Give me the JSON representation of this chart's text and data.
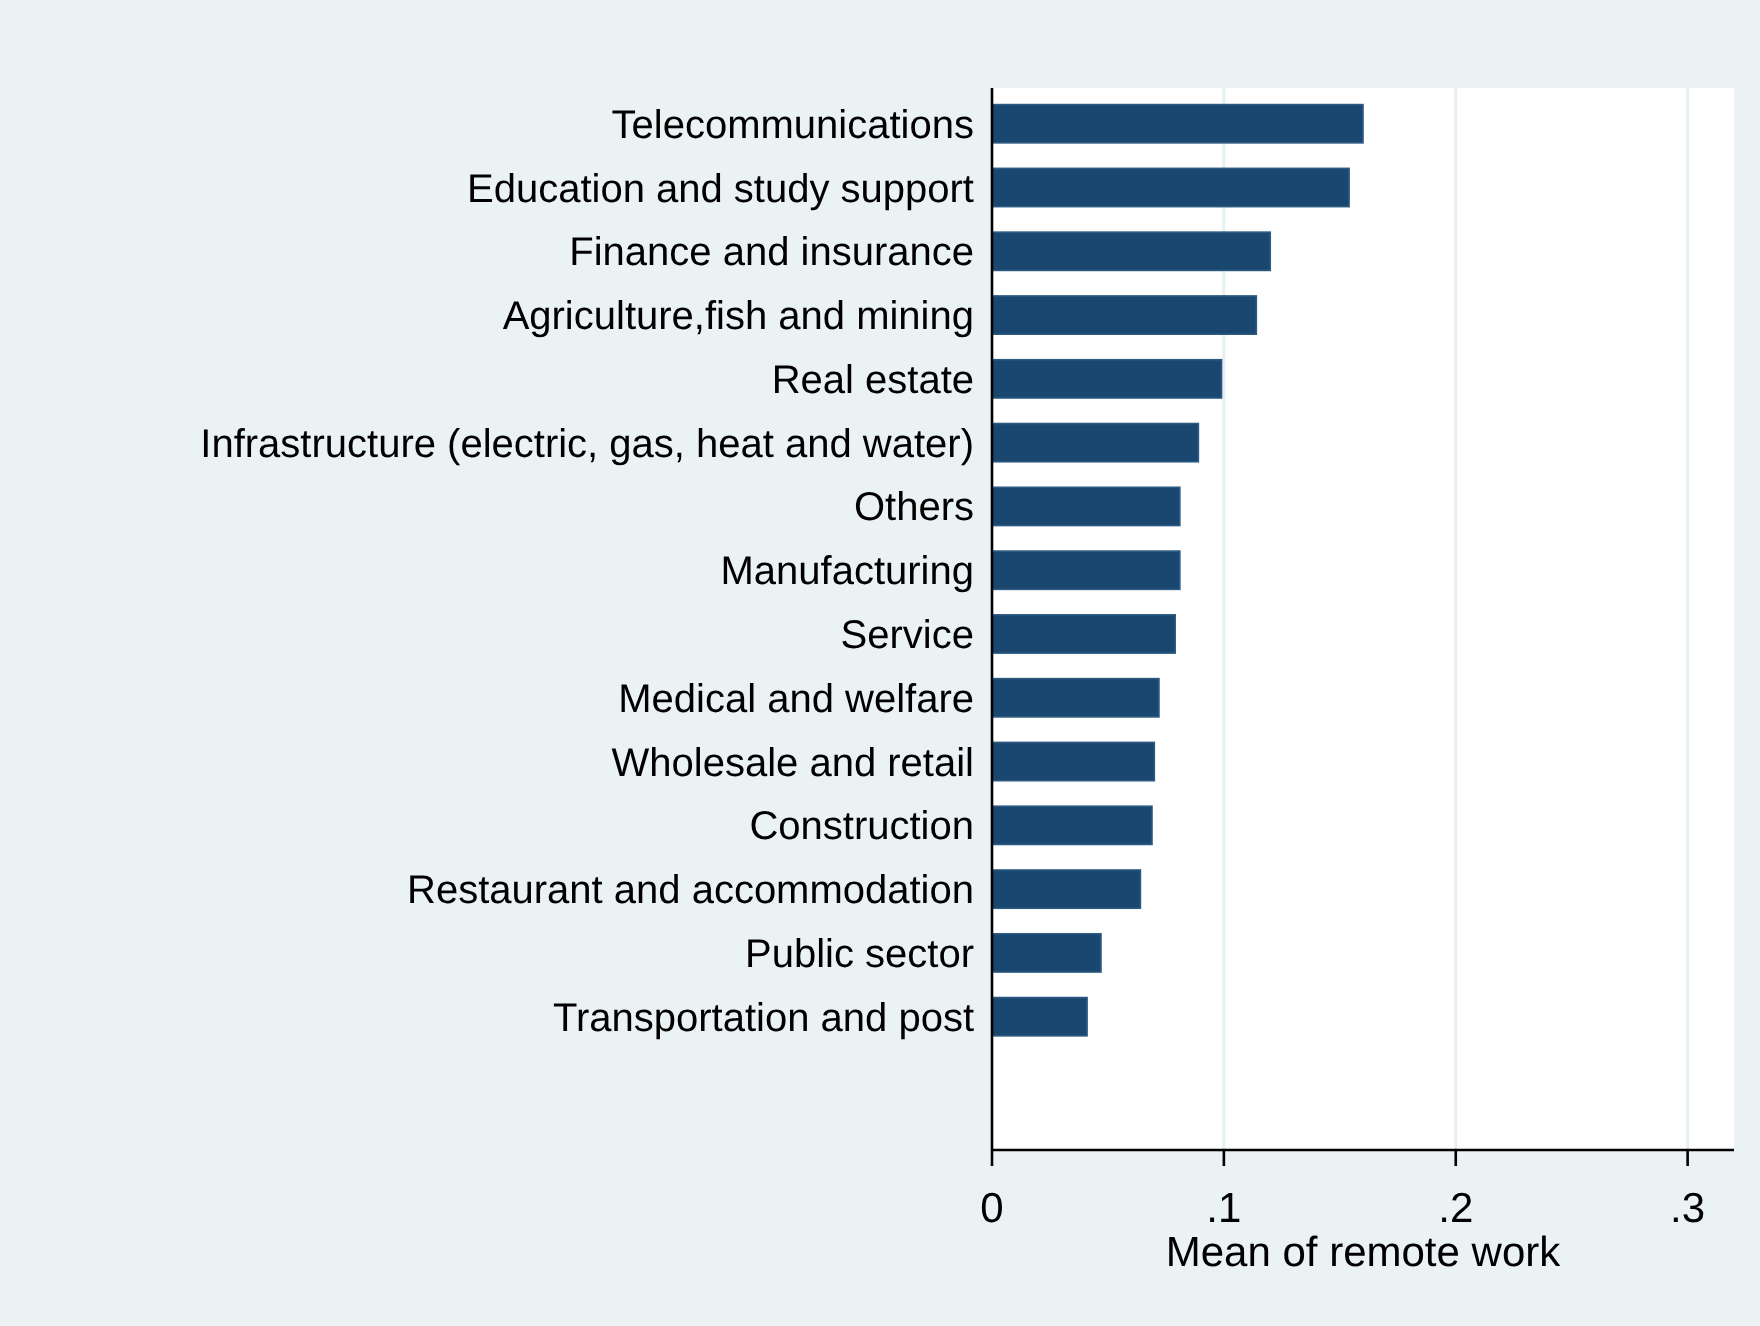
{
  "chart_data": {
    "type": "bar",
    "orientation": "horizontal",
    "xlabel": "Mean of remote work",
    "categories": [
      "Telecommunications",
      "Education and study support",
      "Finance and insurance",
      "Agriculture,fish and mining",
      "Real estate",
      "Infrastructure (electric, gas, heat and water)",
      "Others",
      "Manufacturing",
      "Service",
      "Medical and welfare",
      "Wholesale and retail",
      "Construction",
      "Restaurant and accommodation",
      "Public sector",
      "Transportation and post"
    ],
    "values": [
      0.16,
      0.154,
      0.12,
      0.114,
      0.099,
      0.089,
      0.081,
      0.081,
      0.079,
      0.072,
      0.07,
      0.069,
      0.064,
      0.047,
      0.041
    ],
    "color": "#1a476f",
    "xlim": [
      0,
      0.32
    ],
    "xticks": [
      0,
      {
        "value": 0.1,
        "label": ".1"
      },
      {
        "value": 0.2,
        "label": ".2"
      },
      {
        "value": 0.3,
        "label": ".3"
      }
    ],
    "grid": "x"
  }
}
